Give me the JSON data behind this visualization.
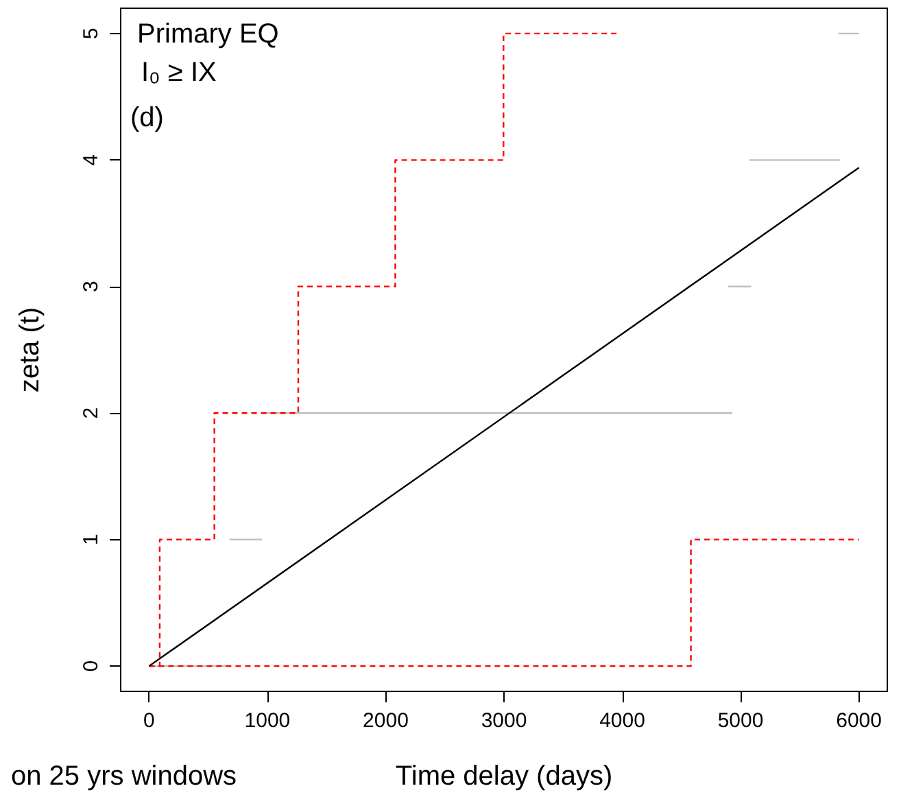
{
  "chart_data": {
    "type": "line",
    "title": "Primary EQ",
    "subtitle": "I₀ ≥ IX",
    "xlabel": "Time delay (days)",
    "ylabel": "zeta (t)",
    "annotations": [
      "(d)",
      "on 25 yrs windows"
    ],
    "xlim": [
      -240,
      6240
    ],
    "xticks": [
      0,
      1000,
      2000,
      3000,
      4000,
      5000,
      6000
    ],
    "ylim": [
      -0.2,
      5.2
    ],
    "yticks": [
      0,
      1,
      2,
      3,
      4,
      5
    ],
    "grid": false,
    "marker": "none",
    "series": [
      {
        "color": "#bebebe",
        "line_style": "solid",
        "x": [
          0,
          685
        ],
        "values": [
          0,
          0
        ]
      },
      {
        "color": "#bebebe",
        "line_style": "solid",
        "x": [
          680,
          955
        ],
        "values": [
          1,
          1
        ]
      },
      {
        "color": "#bebebe",
        "line_style": "solid",
        "x": [
          955,
          4930
        ],
        "values": [
          2,
          2
        ]
      },
      {
        "color": "#bebebe",
        "line_style": "solid",
        "x": [
          4895,
          5090
        ],
        "values": [
          3,
          3
        ]
      },
      {
        "color": "#bebebe",
        "line_style": "solid",
        "x": [
          5075,
          5840
        ],
        "values": [
          4,
          4
        ]
      },
      {
        "color": "#bebebe",
        "line_style": "solid",
        "x": [
          5826,
          6000
        ],
        "values": [
          5,
          5
        ]
      },
      {
        "type": "step",
        "color": "#ff0000",
        "line_style": "dashed",
        "x": [
          0,
          90,
          552,
          1261,
          2081,
          2996,
          3970
        ],
        "values": [
          0,
          1,
          2,
          3,
          4,
          5,
          5
        ]
      },
      {
        "type": "step",
        "color": "#ff0000",
        "line_style": "dashed",
        "x": [
          0,
          4580,
          6000
        ],
        "values": [
          0,
          1,
          1
        ]
      },
      {
        "color": "#000000",
        "line_style": "solid",
        "x": [
          0,
          6000
        ],
        "values": [
          0,
          3.94
        ]
      }
    ]
  }
}
